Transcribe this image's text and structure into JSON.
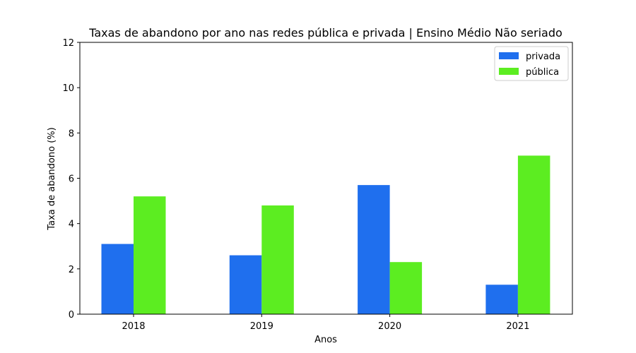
{
  "chart_data": {
    "type": "bar",
    "title": "Taxas de abandono por ano nas redes pública e privada | Ensino Médio Não seriado",
    "xlabel": "Anos",
    "ylabel": "Taxa de abandono (%)",
    "categories": [
      "2018",
      "2019",
      "2020",
      "2021"
    ],
    "series": [
      {
        "name": "privada",
        "color": "#1f6fee",
        "values": [
          3.1,
          2.6,
          5.7,
          1.3
        ]
      },
      {
        "name": "pública",
        "color": "#5ced21",
        "values": [
          5.2,
          4.8,
          2.3,
          7.0
        ]
      }
    ],
    "ylim": [
      0,
      12
    ],
    "yticks": [
      0,
      2,
      4,
      6,
      8,
      10,
      12
    ],
    "grid": false,
    "legend": "top-right"
  }
}
